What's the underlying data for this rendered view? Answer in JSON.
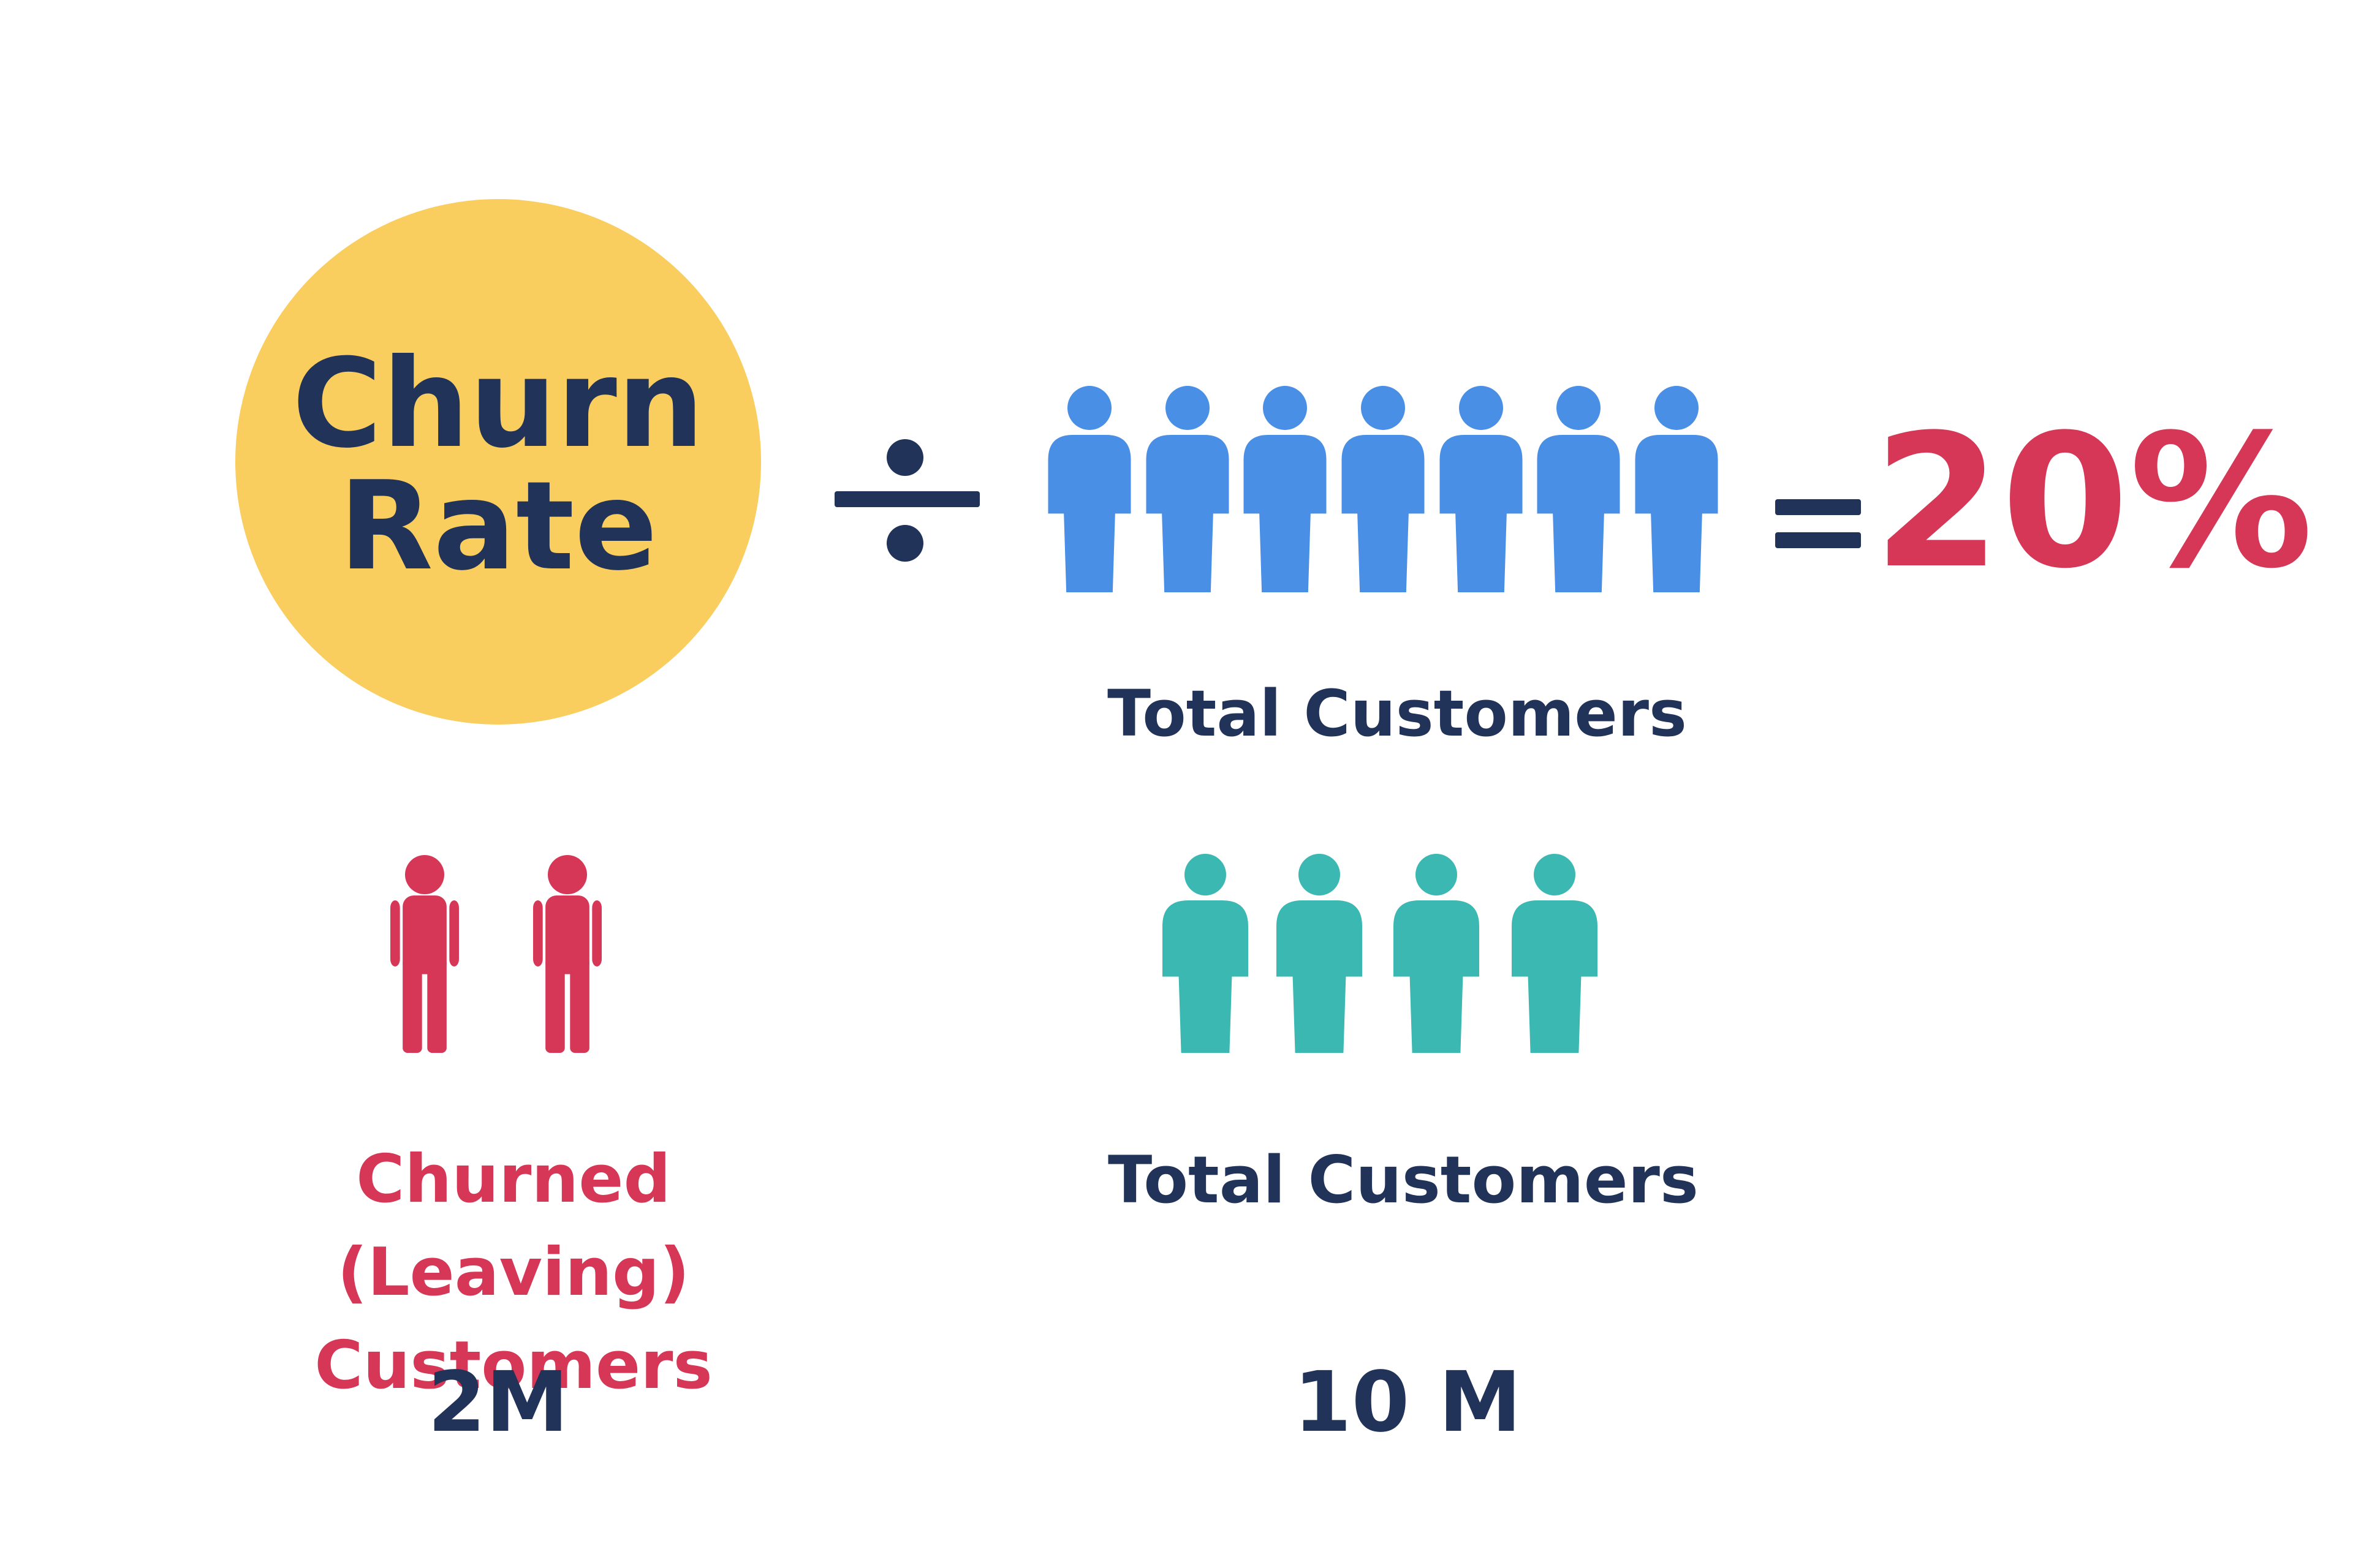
{
  "formula": {
    "title": "Churn Rate",
    "denominator_label": "Total Customers",
    "result": "20%"
  },
  "churned": {
    "label": "Churned (Leaving) Customers",
    "value": "2M"
  },
  "total": {
    "label": "Total Customers",
    "value": "10 M"
  }
}
